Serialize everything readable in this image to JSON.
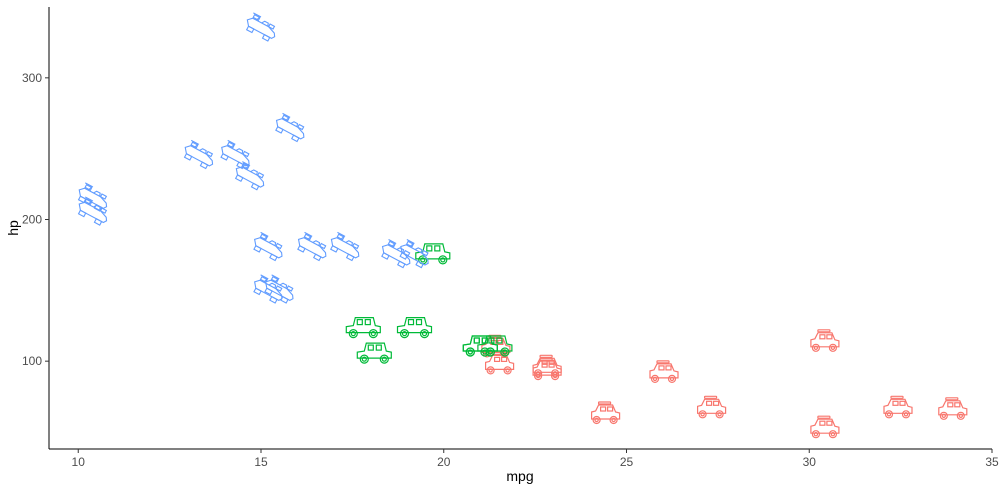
{
  "chart_data": {
    "type": "scatter",
    "title": "",
    "xlabel": "mpg",
    "ylabel": "hp",
    "xlim": [
      9.2,
      35
    ],
    "ylim": [
      38,
      350
    ],
    "xticks": [
      10,
      15,
      20,
      25,
      30,
      35
    ],
    "yticks": [
      100,
      200,
      300
    ],
    "grid": false,
    "legend": "none",
    "marker_shapes": {
      "4": "suv-icon",
      "6": "sedan-icon",
      "8": "race-car-icon"
    },
    "series": [
      {
        "cyl": "4",
        "color": "#F8766D",
        "points": [
          [
            22.8,
            93
          ],
          [
            24.4,
            62
          ],
          [
            22.8,
            95
          ],
          [
            32.4,
            66
          ],
          [
            30.4,
            52
          ],
          [
            33.9,
            65
          ],
          [
            21.5,
            97
          ],
          [
            27.3,
            66
          ],
          [
            26.0,
            91
          ],
          [
            30.4,
            113
          ],
          [
            21.4,
            109
          ]
        ]
      },
      {
        "cyl": "6",
        "color": "#00BA38",
        "points": [
          [
            21.0,
            110
          ],
          [
            21.0,
            110
          ],
          [
            21.4,
            110
          ],
          [
            18.1,
            105
          ],
          [
            19.2,
            123
          ],
          [
            17.8,
            123
          ],
          [
            19.7,
            175
          ]
        ]
      },
      {
        "cyl": "8",
        "color": "#619CFF",
        "points": [
          [
            18.7,
            175
          ],
          [
            14.3,
            245
          ],
          [
            16.4,
            180
          ],
          [
            17.3,
            180
          ],
          [
            15.2,
            180
          ],
          [
            10.4,
            205
          ],
          [
            10.4,
            215
          ],
          [
            14.7,
            230
          ],
          [
            15.5,
            150
          ],
          [
            15.2,
            150
          ],
          [
            13.3,
            245
          ],
          [
            19.2,
            175
          ],
          [
            15.8,
            264
          ],
          [
            15.0,
            335
          ]
        ]
      }
    ]
  }
}
